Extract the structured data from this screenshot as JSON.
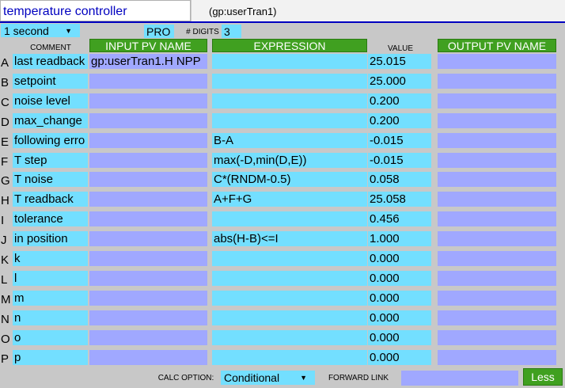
{
  "header": {
    "title": "temperature controller",
    "record": "(gp:userTran1)"
  },
  "toolbar": {
    "scan_rate": "1 second",
    "pro_label": "PRO",
    "digits_label": "# DIGITS",
    "digits_value": "3"
  },
  "columns": {
    "comment": "COMMENT",
    "input_pv": "INPUT PV NAME",
    "expression": "EXPRESSION",
    "value": "VALUE",
    "output_pv": "OUTPUT PV NAME"
  },
  "rows": [
    {
      "letter": "A",
      "comment": "last readback",
      "input_pv": "gp:userTran1.H NPP",
      "expression": "",
      "value": "25.015",
      "output_pv": ""
    },
    {
      "letter": "B",
      "comment": "setpoint",
      "input_pv": "",
      "expression": "",
      "value": "25.000",
      "output_pv": ""
    },
    {
      "letter": "C",
      "comment": "noise level",
      "input_pv": "",
      "expression": "",
      "value": "0.200",
      "output_pv": ""
    },
    {
      "letter": "D",
      "comment": "max_change",
      "input_pv": "",
      "expression": "",
      "value": "0.200",
      "output_pv": ""
    },
    {
      "letter": "E",
      "comment": "following erro",
      "input_pv": "",
      "expression": "B-A",
      "value": "-0.015",
      "output_pv": ""
    },
    {
      "letter": "F",
      "comment": "T step",
      "input_pv": "",
      "expression": "max(-D,min(D,E))",
      "value": "-0.015",
      "output_pv": ""
    },
    {
      "letter": "G",
      "comment": "T noise",
      "input_pv": "",
      "expression": "C*(RNDM-0.5)",
      "value": "0.058",
      "output_pv": ""
    },
    {
      "letter": "H",
      "comment": "T readback",
      "input_pv": "",
      "expression": "A+F+G",
      "value": "25.058",
      "output_pv": ""
    },
    {
      "letter": "I",
      "comment": "tolerance",
      "input_pv": "",
      "expression": "",
      "value": "0.456",
      "output_pv": ""
    },
    {
      "letter": "J",
      "comment": "in position",
      "input_pv": "",
      "expression": "abs(H-B)<=I",
      "value": "1.000",
      "output_pv": ""
    },
    {
      "letter": "K",
      "comment": "k",
      "input_pv": "",
      "expression": "",
      "value": "0.000",
      "output_pv": ""
    },
    {
      "letter": "L",
      "comment": "l",
      "input_pv": "",
      "expression": "",
      "value": "0.000",
      "output_pv": ""
    },
    {
      "letter": "M",
      "comment": "m",
      "input_pv": "",
      "expression": "",
      "value": "0.000",
      "output_pv": ""
    },
    {
      "letter": "N",
      "comment": "n",
      "input_pv": "",
      "expression": "",
      "value": "0.000",
      "output_pv": ""
    },
    {
      "letter": "O",
      "comment": "o",
      "input_pv": "",
      "expression": "",
      "value": "0.000",
      "output_pv": ""
    },
    {
      "letter": "P",
      "comment": "p",
      "input_pv": "",
      "expression": "",
      "value": "0.000",
      "output_pv": ""
    }
  ],
  "footer": {
    "calc_option_label": "CALC OPTION:",
    "calc_option_value": "Conditional",
    "forward_link_label": "FORWARD LINK",
    "forward_link_value": "",
    "less_button": "Less"
  },
  "colors": {
    "entry": "#73dfff",
    "pv_entry": "#a0a8ff",
    "header_green": "#40a020",
    "title_text": "#0000c0"
  },
  "icons": {
    "dropdown": "caret-down-icon"
  }
}
